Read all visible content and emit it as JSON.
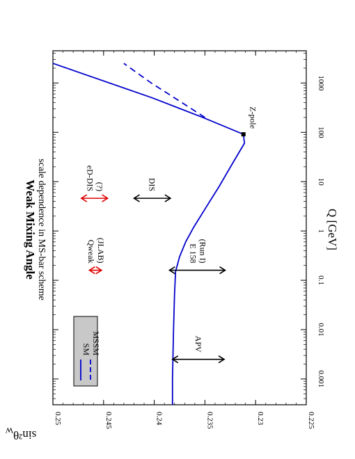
{
  "chart_data": {
    "type": "line",
    "title": "Weak Mixing Angle",
    "subtitle": "scale dependence in MS-bar scheme",
    "xlabel": "Q [GeV]",
    "ylabel": "sin²θ",
    "ylabel_sub": "W",
    "x_scale": "log",
    "xlim": [
      0.0003,
      4500
    ],
    "ylim": [
      0.225,
      0.25
    ],
    "x_ticks": [
      {
        "v": 0.001,
        "label": "0.001"
      },
      {
        "v": 0.01,
        "label": "0.01"
      },
      {
        "v": 0.1,
        "label": "0.1"
      },
      {
        "v": 1,
        "label": "1"
      },
      {
        "v": 10,
        "label": "10"
      },
      {
        "v": 100,
        "label": "100"
      },
      {
        "v": 1000,
        "label": "1000"
      }
    ],
    "y_ticks": [
      {
        "v": 0.225,
        "label": "0.225"
      },
      {
        "v": 0.23,
        "label": "0.23"
      },
      {
        "v": 0.235,
        "label": "0.235"
      },
      {
        "v": 0.24,
        "label": "0.24"
      },
      {
        "v": 0.245,
        "label": "0.245"
      },
      {
        "v": 0.25,
        "label": "0.25"
      }
    ],
    "series": [
      {
        "name": "SM",
        "style": "solid",
        "color": "#0000cc",
        "points": [
          [
            0.0003,
            0.2382
          ],
          [
            0.001,
            0.2382
          ],
          [
            0.01,
            0.2381
          ],
          [
            0.05,
            0.238
          ],
          [
            0.15,
            0.2379
          ],
          [
            0.3,
            0.2375
          ],
          [
            0.6,
            0.2369
          ],
          [
            1.2,
            0.2361
          ],
          [
            3,
            0.2349
          ],
          [
            8,
            0.2336
          ],
          [
            25,
            0.2322
          ],
          [
            60,
            0.2311
          ],
          [
            91.2,
            0.2312
          ],
          [
            200,
            0.2352
          ],
          [
            500,
            0.2402
          ],
          [
            2500,
            0.25
          ]
        ]
      },
      {
        "name": "MSSM",
        "style": "dashed",
        "color": "#0000cc",
        "points": [
          [
            200,
            0.235
          ],
          [
            500,
            0.238
          ],
          [
            1000,
            0.2403
          ],
          [
            2500,
            0.243
          ]
        ]
      }
    ],
    "measurements": [
      {
        "label": "APV",
        "label2": "",
        "q": 0.0025,
        "y_low": 0.2331,
        "y_high": 0.2382,
        "color": "#000000"
      },
      {
        "label": "E 158",
        "label2": "(Run I)",
        "q": 0.16,
        "y_low": 0.233,
        "y_high": 0.2385,
        "color": "#000000"
      },
      {
        "label": "Qweak",
        "label2": "(JLAB)",
        "q": 0.16,
        "y_low": 0.2452,
        "y_high": 0.2464,
        "color": "#e00000"
      },
      {
        "label": "DIS",
        "label2": "",
        "q": 4.6,
        "y_low": 0.2384,
        "y_high": 0.242,
        "color": "#000000"
      },
      {
        "label": "eD-DIS",
        "label2": "(?)",
        "q": 4.6,
        "y_low": 0.2446,
        "y_high": 0.2472,
        "color": "#e00000"
      }
    ],
    "zpole": {
      "label": "Z-pole",
      "q": 91.2,
      "y": 0.2312
    },
    "legend": {
      "placement": "bottom-left",
      "entries": [
        "SM",
        "MSSM"
      ],
      "box_color": "#c8c8c8"
    }
  }
}
